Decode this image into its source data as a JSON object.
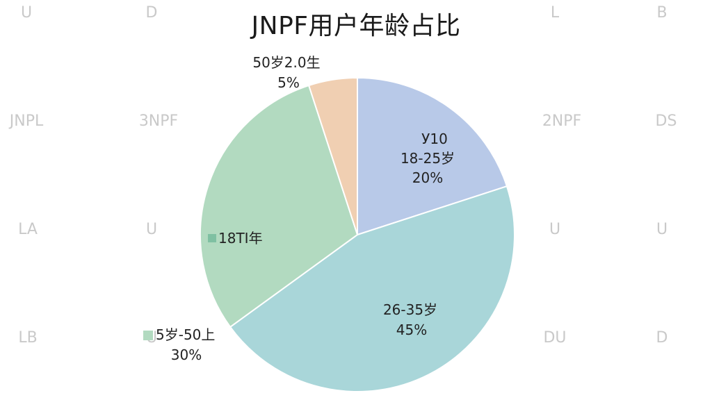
{
  "chart_data": {
    "type": "pie",
    "title": "JNPF用户年龄占比",
    "slices": [
      {
        "label": "18-25岁",
        "value": 20,
        "color": "#b8c9e8",
        "extra": "У10",
        "pct_text": "20%"
      },
      {
        "label": "26-35岁",
        "value": 45,
        "color": "#a9d6d9",
        "pct_text": "45%"
      },
      {
        "label": "5岁-50上",
        "value": 30,
        "color": "#b2dac0",
        "pct_text": "30%"
      },
      {
        "label": "50岁2.0生",
        "value": 5,
        "color": "#f0cfb2",
        "pct_text": "5%"
      }
    ],
    "legend_label": "18ТI年",
    "legend_color": "#7fc0a2"
  },
  "watermarks": [
    "U",
    "D",
    "L",
    "B",
    "JNPL",
    "3NPF",
    "2NPF",
    "DS",
    "LA",
    "U",
    "U",
    "U",
    "LB",
    "U",
    "DU",
    "D"
  ]
}
